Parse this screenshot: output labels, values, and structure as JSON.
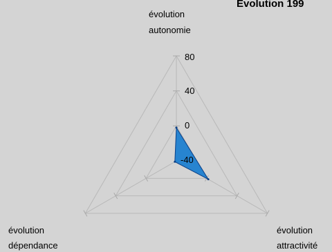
{
  "chart_data": {
    "type": "radar",
    "title": "Evolution 199",
    "axes": [
      {
        "line1": "évolution",
        "line2": "autonomie"
      },
      {
        "line1": "évolution",
        "line2": "attractivité"
      },
      {
        "line1": "évolution",
        "line2": "dépendance"
      }
    ],
    "ticks": [
      "80",
      "40",
      "0",
      "-40"
    ],
    "rlim": [
      -40,
      80
    ],
    "grid": true,
    "series": [
      {
        "values": [
          -2,
          2,
          -38
        ],
        "color": "#1e7fd0"
      }
    ]
  }
}
